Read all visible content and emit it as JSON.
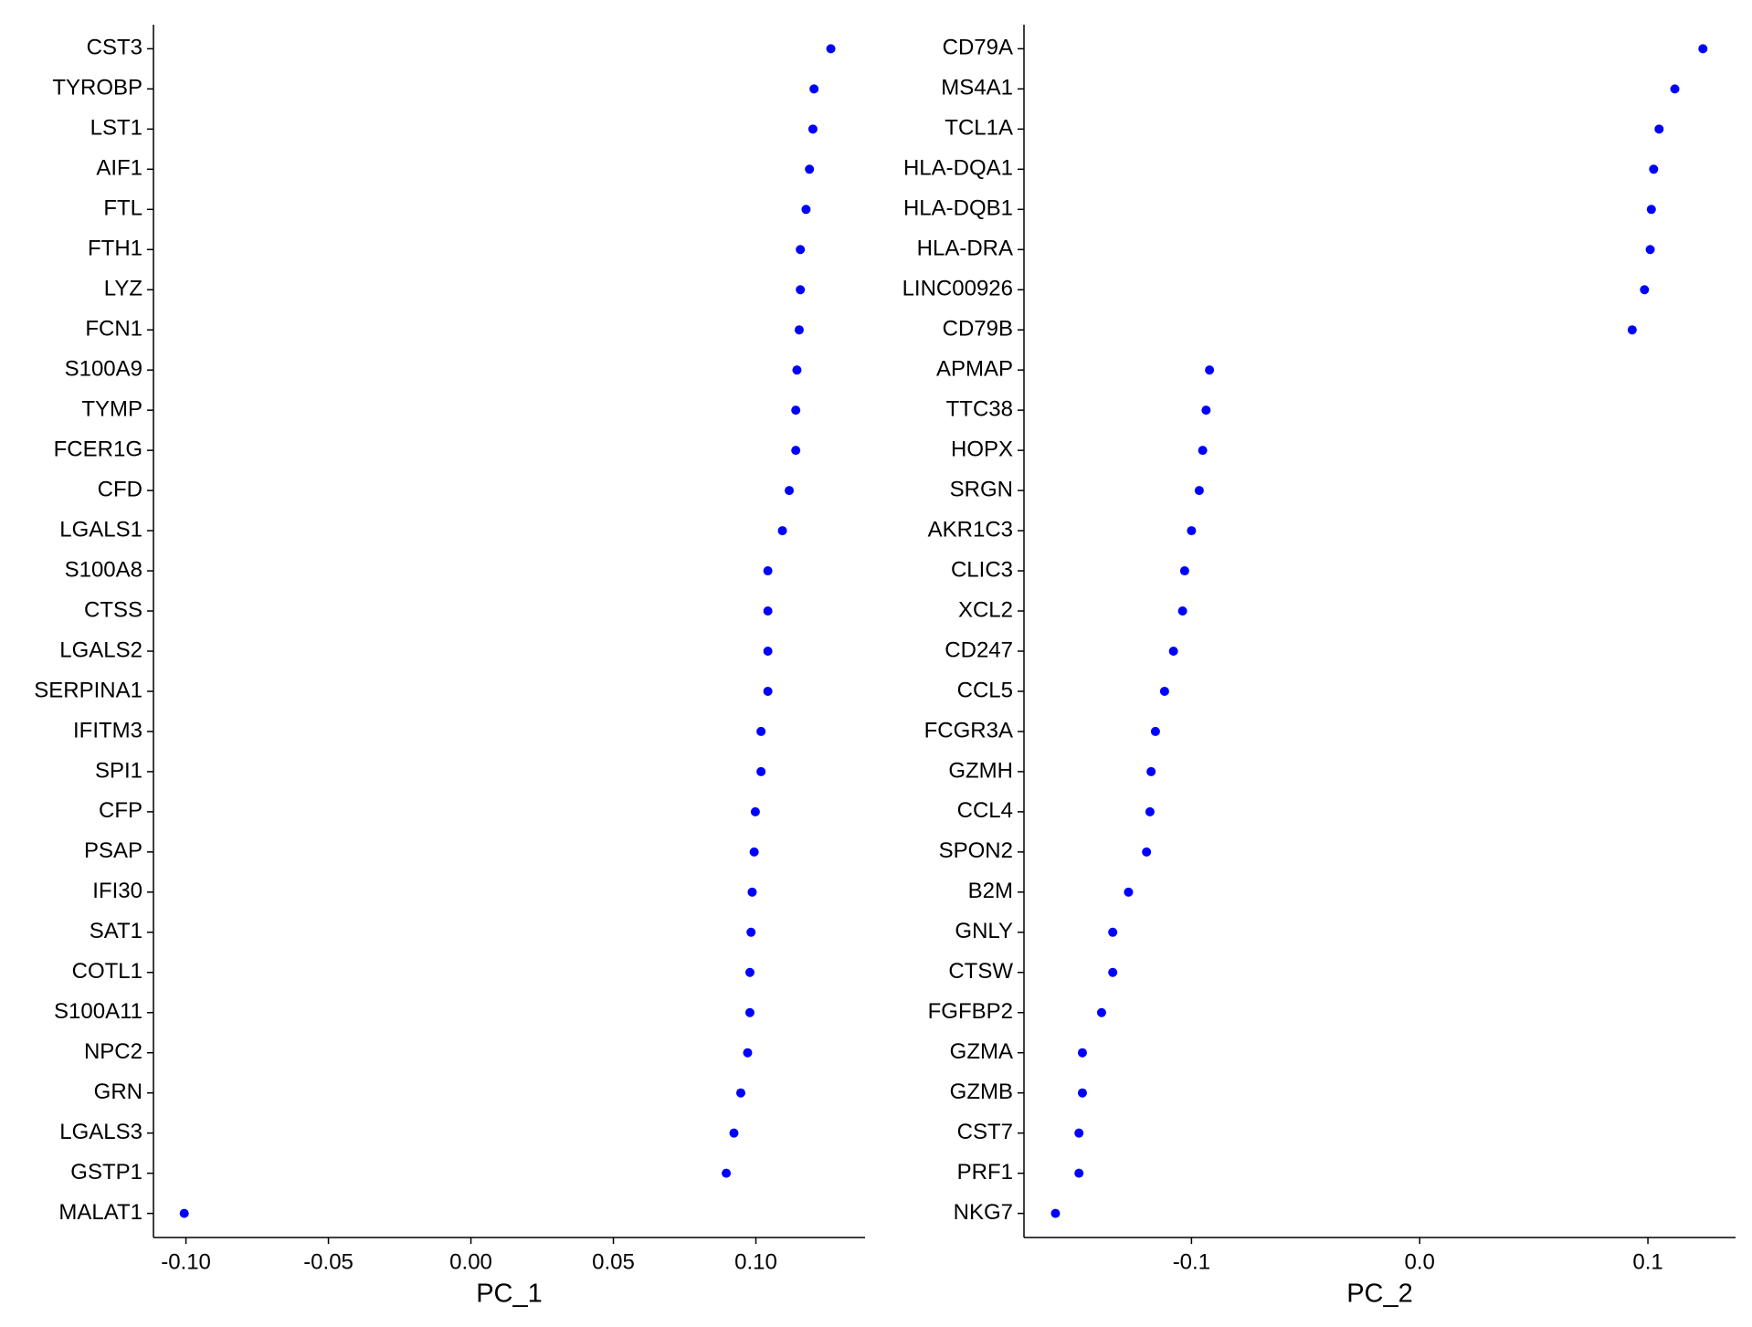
{
  "chart_data": [
    {
      "type": "dot",
      "x_label": "PC_1",
      "color": "#0000ff",
      "categories": [
        "CST3",
        "TYROBP",
        "LST1",
        "AIF1",
        "FTL",
        "FTH1",
        "LYZ",
        "FCN1",
        "S100A9",
        "TYMP",
        "FCER1G",
        "CFD",
        "LGALS1",
        "S100A8",
        "CTSS",
        "LGALS2",
        "SERPINA1",
        "IFITM3",
        "SPI1",
        "CFP",
        "PSAP",
        "IFI30",
        "SAT1",
        "COTL1",
        "S100A11",
        "NPC2",
        "GRN",
        "LGALS3",
        "GSTP1",
        "MALAT1"
      ],
      "values": [
        0.1263,
        0.1204,
        0.12,
        0.1188,
        0.1176,
        0.1156,
        0.1156,
        0.1152,
        0.1144,
        0.114,
        0.114,
        0.1117,
        0.1093,
        0.1042,
        0.1042,
        0.1042,
        0.1042,
        0.1018,
        0.1018,
        0.0998,
        0.0994,
        0.0987,
        0.0983,
        0.0979,
        0.0979,
        0.0971,
        0.0947,
        0.0923,
        0.0896,
        -0.1006
      ],
      "xlim": [
        -0.1114,
        0.1383
      ],
      "xticks": [
        {
          "value": -0.1,
          "label": "-0.10"
        },
        -0.05,
        {
          "value": 0,
          "label": "0.00"
        },
        0.05,
        {
          "value": 0.1,
          "label": "0.10"
        }
      ]
    },
    {
      "type": "dot",
      "x_label": "PC_2",
      "color": "#0000ff",
      "categories": [
        "CD79A",
        "MS4A1",
        "TCL1A",
        "HLA-DQA1",
        "HLA-DQB1",
        "HLA-DRA",
        "LINC00926",
        "CD79B",
        "APMAP",
        "TTC38",
        "HOPX",
        "SRGN",
        "AKR1C3",
        "CLIC3",
        "XCL2",
        "CD247",
        "CCL5",
        "FCGR3A",
        "GZMH",
        "CCL4",
        "SPON2",
        "B2M",
        "GNLY",
        "CTSW",
        "FGFBP2",
        "GZMA",
        "GZMB",
        "CST7",
        "PRF1",
        "NKG7"
      ],
      "values": [
        0.1241,
        0.1118,
        0.1049,
        0.1025,
        0.1015,
        0.101,
        0.0985,
        0.0931,
        -0.0921,
        -0.0936,
        -0.0951,
        -0.0966,
        -0.1,
        -0.103,
        -0.1039,
        -0.1079,
        -0.1118,
        -0.1158,
        -0.1177,
        -0.1182,
        -0.1197,
        -0.1276,
        -0.1345,
        -0.1345,
        -0.1394,
        -0.1478,
        -0.1478,
        -0.1493,
        -0.1493,
        -0.1596
      ],
      "xlim": [
        -0.1734,
        0.1384
      ],
      "xticks": [
        -0.1,
        {
          "value": 0,
          "label": "0.0"
        },
        0.1
      ]
    }
  ]
}
